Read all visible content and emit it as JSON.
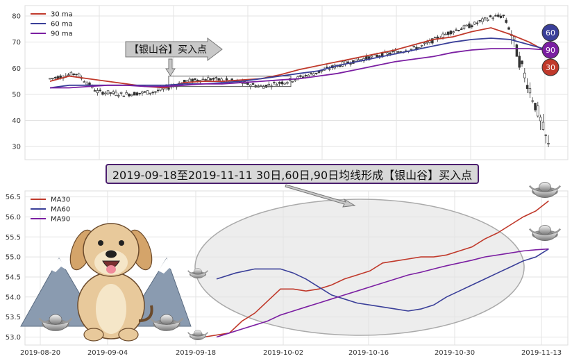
{
  "chart_data": [
    {
      "type": "line",
      "subtype": "candlestick-with-moving-averages",
      "ylim": [
        25,
        84
      ],
      "y_ticks": [
        "30",
        "40",
        "50",
        "60",
        "70",
        "80"
      ],
      "legend": {
        "position": "top-left",
        "entries": [
          "30 ma",
          "60 ma",
          "90 ma"
        ]
      },
      "series": [
        {
          "name": "30 ma",
          "color": "#c0392b",
          "values": [
            55,
            57,
            56,
            55,
            54,
            53,
            52.5,
            54.5,
            55,
            55,
            55.5,
            56,
            57.5,
            59.5,
            61,
            62.5,
            64,
            65.5,
            67,
            69,
            71,
            72,
            74,
            75.5,
            73,
            70,
            66
          ]
        },
        {
          "name": "60 ma",
          "color": "#3a3f99",
          "values": [
            52.5,
            53.5,
            53.5,
            53.5,
            53.5,
            53.5,
            53.5,
            54,
            54,
            54.5,
            55,
            56,
            57,
            58,
            59,
            61,
            62.5,
            64,
            65.5,
            67,
            68.5,
            70,
            71,
            71.5,
            71,
            69,
            67
          ]
        },
        {
          "name": "90 ma",
          "color": "#7b1fa2",
          "values": [
            52.5,
            52.5,
            53,
            53.5,
            53.5,
            53,
            53,
            53.5,
            54,
            54,
            54.5,
            55,
            55.5,
            56,
            57,
            58,
            59.5,
            61,
            62.5,
            63.5,
            64.5,
            66,
            67,
            67.5,
            67.5,
            67.5,
            67
          ]
        }
      ],
      "end_badges": [
        {
          "label": "60",
          "color": "#3a3f99"
        },
        {
          "label": "90",
          "color": "#7b1fa2"
        },
        {
          "label": "30",
          "color": "#c0392b"
        }
      ],
      "annotation": "【银山谷】买入点",
      "highlight_y_range": [
        53,
        57
      ]
    },
    {
      "type": "line",
      "ylim": [
        52.8,
        56.65
      ],
      "y_ticks": [
        "53.0",
        "53.5",
        "54.0",
        "54.5",
        "55.0",
        "55.5",
        "56.0",
        "56.5"
      ],
      "x_ticks": [
        "2019-08-20",
        "2019-09-04",
        "2019-09-18",
        "2019-10-02",
        "2019-10-16",
        "2019-10-30",
        "2019-11-13"
      ],
      "legend": {
        "position": "top-left",
        "entries": [
          "MA30",
          "MA60",
          "MA90"
        ]
      },
      "x_range": [
        0,
        85
      ],
      "series": [
        {
          "name": "MA30",
          "color": "#c0392b",
          "x": [
            28,
            32,
            34,
            36,
            38,
            40,
            42,
            44,
            46,
            48,
            50,
            52,
            54,
            56,
            58,
            60,
            62,
            64,
            66,
            68,
            70,
            72,
            74,
            76,
            78,
            80,
            82
          ],
          "values": [
            53.0,
            53.1,
            53.4,
            53.6,
            53.9,
            54.2,
            54.2,
            54.15,
            54.2,
            54.3,
            54.45,
            54.55,
            54.65,
            54.85,
            54.9,
            54.95,
            55.0,
            55.0,
            55.05,
            55.15,
            55.25,
            55.45,
            55.6,
            55.8,
            56.0,
            56.15,
            56.4
          ]
        },
        {
          "name": "MA60",
          "color": "#3a3f99",
          "x": [
            30,
            33,
            36,
            38,
            40,
            42,
            44,
            46,
            48,
            50,
            52,
            54,
            56,
            58,
            60,
            62,
            64,
            66,
            68,
            70,
            72,
            74,
            76,
            78,
            80,
            82
          ],
          "values": [
            54.45,
            54.6,
            54.7,
            54.7,
            54.7,
            54.6,
            54.45,
            54.25,
            54.05,
            53.95,
            53.85,
            53.8,
            53.75,
            53.7,
            53.65,
            53.7,
            53.8,
            54.0,
            54.15,
            54.3,
            54.45,
            54.6,
            54.75,
            54.9,
            55.0,
            55.2
          ]
        },
        {
          "name": "MA90",
          "color": "#7b1fa2",
          "x": [
            30,
            32,
            34,
            36,
            38,
            40,
            42,
            44,
            46,
            48,
            50,
            52,
            54,
            56,
            58,
            60,
            62,
            64,
            66,
            68,
            70,
            72,
            74,
            76,
            78,
            80,
            82
          ],
          "values": [
            53.0,
            53.1,
            53.2,
            53.3,
            53.4,
            53.55,
            53.65,
            53.75,
            53.85,
            53.95,
            54.05,
            54.15,
            54.25,
            54.35,
            54.45,
            54.55,
            54.62,
            54.7,
            54.78,
            54.85,
            54.92,
            55.0,
            55.05,
            55.1,
            55.15,
            55.18,
            55.2
          ]
        }
      ]
    }
  ],
  "banner_text": "2019-09-18至2019-11-11 30日,60日,90日均线形成【银山谷】买入点"
}
